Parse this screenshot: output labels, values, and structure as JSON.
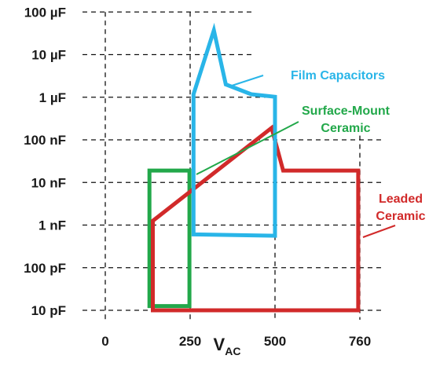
{
  "chart_data": {
    "type": "area",
    "title": "",
    "x_label": {
      "main": "V",
      "sub": "AC"
    },
    "x_ticks": [
      {
        "label": "0",
        "value": 0
      },
      {
        "label": "250",
        "value": 250
      },
      {
        "label": "500",
        "value": 500
      },
      {
        "label": "760",
        "value": 760
      }
    ],
    "y_ticks": [
      {
        "label": "10 pF",
        "decade": 0
      },
      {
        "label": "100 pF",
        "decade": 1
      },
      {
        "label": "1 nF",
        "decade": 2
      },
      {
        "label": "10 nF",
        "decade": 3
      },
      {
        "label": "100 nF",
        "decade": 4
      },
      {
        "label": "1 µF",
        "decade": 5
      },
      {
        "label": "10 µF",
        "decade": 6
      },
      {
        "label": "100 µF",
        "decade": 7
      }
    ],
    "y_scale": "log",
    "grid": "dashed",
    "legend": "none",
    "series": [
      {
        "name": "Film Capacitors",
        "color": "#29b5e8",
        "labels": [
          "Film Capacitors"
        ],
        "points": [
          {
            "v": 260,
            "decade": 5.07
          },
          {
            "v": 320,
            "decade": 6.57
          },
          {
            "v": 355,
            "decade": 5.3
          },
          {
            "v": 430,
            "decade": 5.07
          },
          {
            "v": 500,
            "decade": 5.01
          },
          {
            "v": 500,
            "decade": 1.75
          },
          {
            "v": 260,
            "decade": 1.78
          }
        ]
      },
      {
        "name": "Surface-Mount Ceramic",
        "color": "#22a84a",
        "labels": [
          "Surface-Mount",
          "Ceramic"
        ],
        "points": [
          {
            "v": 130,
            "decade": 3.28
          },
          {
            "v": 248,
            "decade": 3.28
          },
          {
            "v": 248,
            "decade": 0.1
          },
          {
            "v": 130,
            "decade": 0.1
          }
        ]
      },
      {
        "name": "Leaded Ceramic",
        "color": "#d12a2a",
        "labels": [
          "Leaded",
          "Ceramic"
        ],
        "points": [
          {
            "v": 140,
            "decade": 2.1
          },
          {
            "v": 490,
            "decade": 4.28
          },
          {
            "v": 525,
            "decade": 3.28
          },
          {
            "v": 755,
            "decade": 3.28
          },
          {
            "v": 755,
            "decade": 0.0
          },
          {
            "v": 140,
            "decade": 0.0
          }
        ]
      }
    ]
  }
}
